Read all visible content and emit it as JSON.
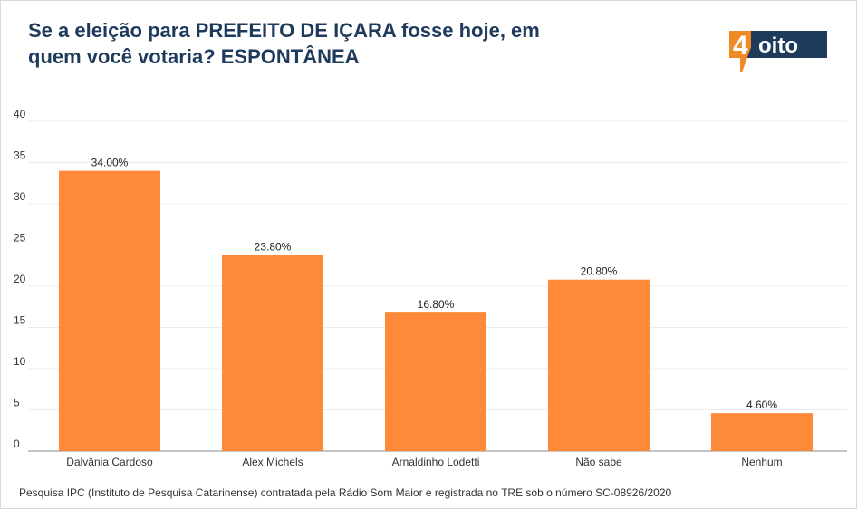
{
  "header": {
    "title_line1": "Se a eleição para PREFEITO DE IÇARA fosse hoje, em",
    "title_line2": "quem você votaria? ESPONTÂNEA"
  },
  "logo": {
    "digit": "4",
    "word": "oito",
    "colors": {
      "orange": "#f08a24",
      "navy": "#1f3b5c"
    }
  },
  "chart_data": {
    "type": "bar",
    "categories": [
      "Dalvânia Cardoso",
      "Alex Michels",
      "Arnaldinho Lodetti",
      "Não sabe",
      "Nenhum"
    ],
    "values": [
      34.0,
      23.8,
      16.8,
      20.8,
      4.6
    ],
    "value_labels": [
      "34.00%",
      "23.80%",
      "16.80%",
      "20.80%",
      "4.60%"
    ],
    "ylim": [
      0,
      40
    ],
    "yticks": [
      0,
      5,
      10,
      15,
      20,
      25,
      30,
      35,
      40
    ],
    "grid": true,
    "bar_color": "#fe8a39"
  },
  "footnote": "Pesquisa IPC (Instituto de Pesquisa Catarinense) contratada pela Rádio Som Maior e registrada no TRE sob o número SC-08926/2020"
}
